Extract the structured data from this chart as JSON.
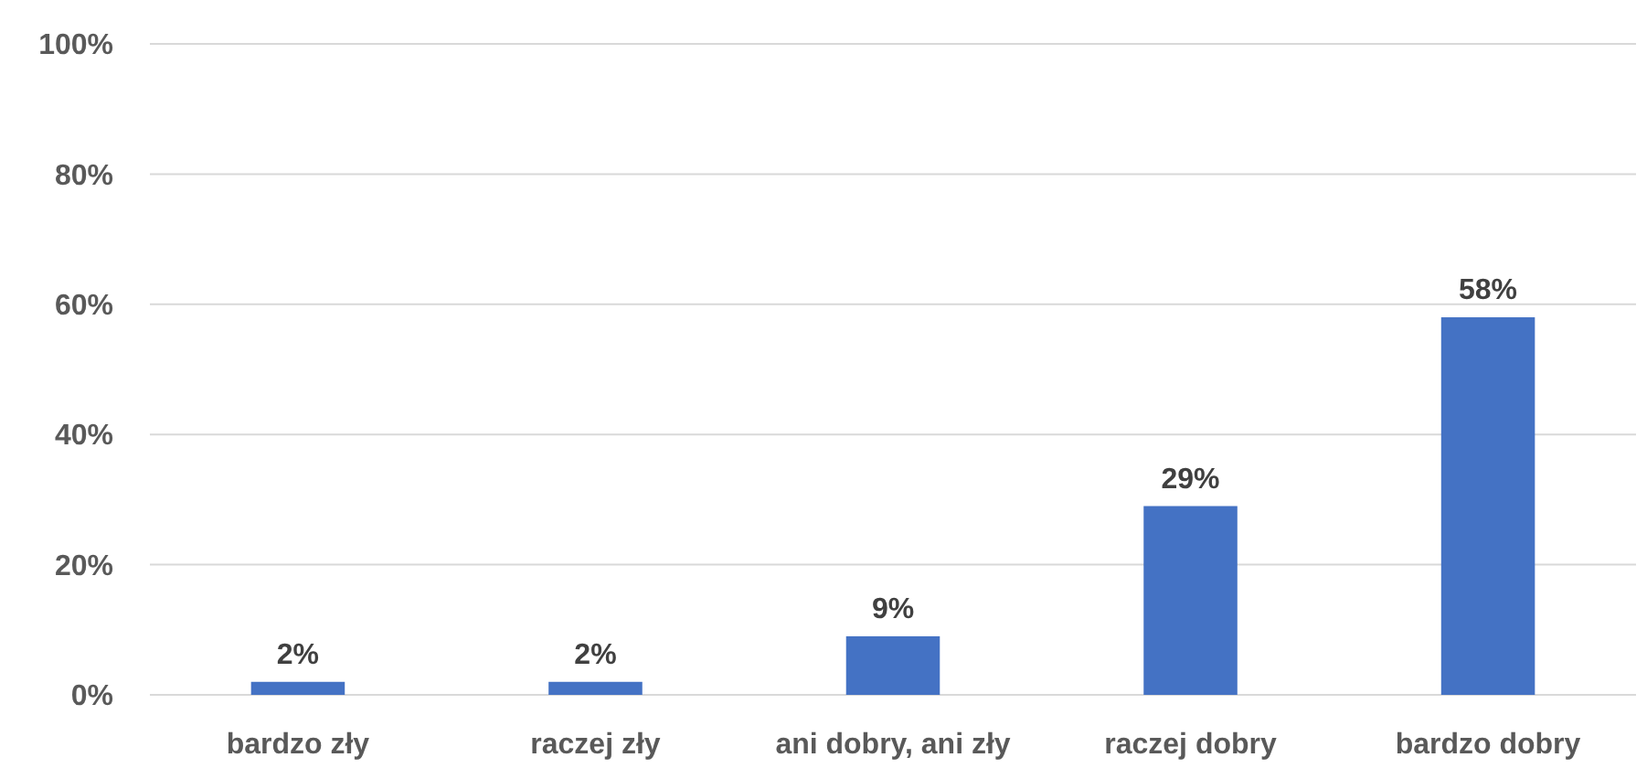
{
  "chart_data": {
    "type": "bar",
    "categories": [
      "bardzo zły",
      "raczej zły",
      "ani dobry, ani zły",
      "raczej dobry",
      "bardzo dobry"
    ],
    "values": [
      2,
      2,
      9,
      29,
      58
    ],
    "color": "#4472c4",
    "value_labels": [
      "2%",
      "2%",
      "9%",
      "29%",
      "58%"
    ],
    "ylim": [
      0,
      100
    ],
    "yticks": [
      {
        "value": 0,
        "label": "0%"
      },
      {
        "value": 20,
        "label": "20%"
      },
      {
        "value": 40,
        "label": "40%"
      },
      {
        "value": 60,
        "label": "60%"
      },
      {
        "value": 80,
        "label": "80%"
      },
      {
        "value": 100,
        "label": "100%"
      }
    ],
    "grid": "y"
  }
}
